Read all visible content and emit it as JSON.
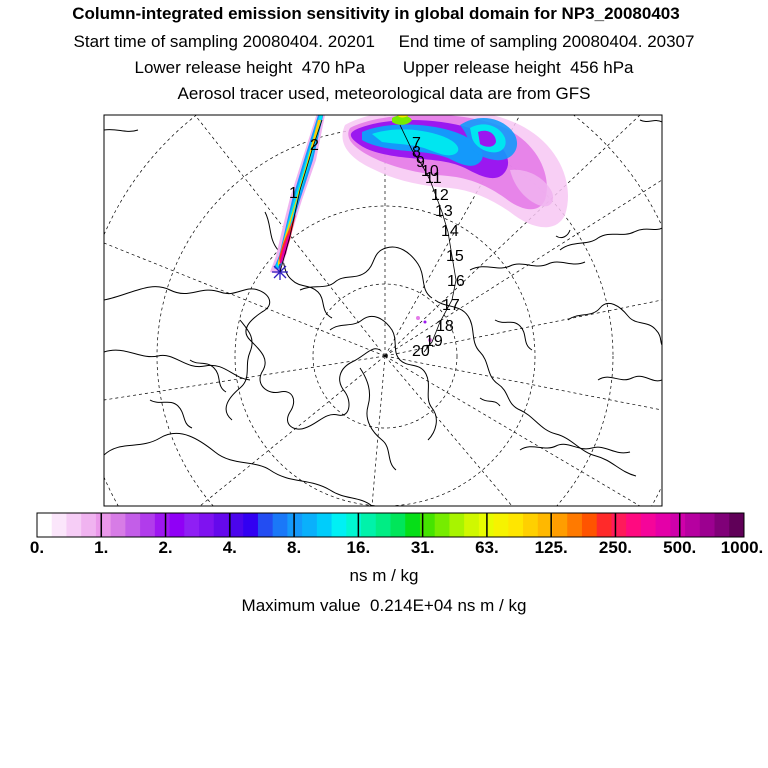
{
  "header": {
    "title": "Column-integrated emission sensitivity in global domain for NP3_20080403",
    "sampling_start": "Start time of sampling 20080404. 20201",
    "sampling_end": "End time of sampling 20080404. 20307",
    "lower_release": "Lower release height  470 hPa",
    "upper_release": "Upper release height  456 hPa",
    "tracer_note": "Aerosol tracer used, meteorological data are from GFS"
  },
  "map": {
    "projection": "polar-stereographic",
    "trajectory_labels": [
      "1",
      "2",
      "7",
      "8",
      "9",
      "10",
      "11",
      "12",
      "13",
      "14",
      "15",
      "16",
      "17",
      "18",
      "19",
      "20"
    ],
    "release_marker": "star-icon"
  },
  "colorbar": {
    "tick_labels": [
      "0.",
      "1.",
      "2.",
      "4.",
      "8.",
      "16.",
      "31.",
      "63.",
      "125.",
      "250.",
      "500.",
      "1000."
    ],
    "colors": [
      "#ffffff",
      "#fbe6fb",
      "#f6cdf6",
      "#f0b3f0",
      "#ea98ea",
      "#d77ce6",
      "#c35ee8",
      "#b13ceb",
      "#9e16f0",
      "#9000f6",
      "#8f1ff4",
      "#7f12f0",
      "#6509ec",
      "#4b05ec",
      "#3200f2",
      "#234df2",
      "#1a78f8",
      "#1499fb",
      "#0ab0fb",
      "#00cdfb",
      "#00f0f4",
      "#00f6d2",
      "#00f2aa",
      "#00ed84",
      "#00e65a",
      "#06de18",
      "#45e400",
      "#76ec00",
      "#a8f400",
      "#d0f800",
      "#e8fc00",
      "#f6f300",
      "#ffe600",
      "#ffd000",
      "#ffb800",
      "#ff9d00",
      "#ff7a00",
      "#ff5400",
      "#ff2a2a",
      "#ff1a5a",
      "#ff0a80",
      "#f5059a",
      "#e400a8",
      "#cf00aa",
      "#b600a0",
      "#9c0090",
      "#800078",
      "#600058"
    ],
    "unit": "ns m / kg"
  },
  "footer": {
    "maximum_value": "Maximum value  0.214E+04 ns m / kg"
  }
}
